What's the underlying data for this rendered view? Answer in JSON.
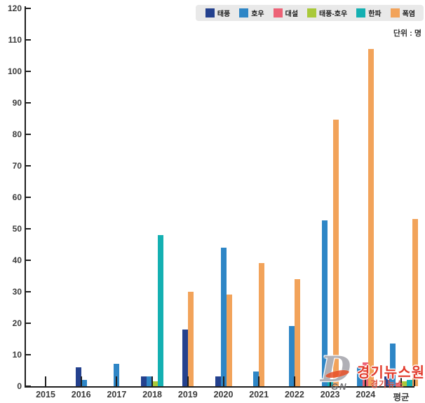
{
  "unit_label": "단위 : 명",
  "legend": {
    "items": [
      {
        "label": "태풍",
        "color": "#24418e"
      },
      {
        "label": "호우",
        "color": "#2e86c6"
      },
      {
        "label": "대설",
        "color": "#ed6276"
      },
      {
        "label": "태풍-호우",
        "color": "#a9c93a"
      },
      {
        "label": "한파",
        "color": "#14b0b2"
      },
      {
        "label": "폭염",
        "color": "#f2a35a"
      }
    ]
  },
  "chart_data": {
    "type": "bar",
    "title": "",
    "xlabel": "",
    "ylabel": "",
    "unit": "명",
    "ylim": [
      0,
      120
    ],
    "ytick_step": 10,
    "grid": false,
    "legend_position": "top-right",
    "categories": [
      "2015",
      "2016",
      "2017",
      "2018",
      "2019",
      "2020",
      "2021",
      "2022",
      "2023",
      "2024",
      "평균"
    ],
    "series": [
      {
        "name": "태풍",
        "color": "#24418e",
        "values": [
          0,
          6,
          0,
          3,
          18,
          3,
          0,
          0,
          0,
          0,
          3
        ]
      },
      {
        "name": "호우",
        "color": "#2e86c6",
        "values": [
          0,
          2,
          7,
          3,
          0,
          44,
          4.5,
          19,
          52.5,
          6,
          13.5
        ]
      },
      {
        "name": "대설",
        "color": "#ed6276",
        "values": [
          0,
          0,
          0,
          0,
          0,
          0,
          0,
          0,
          0,
          7.5,
          1
        ]
      },
      {
        "name": "태풍-호우",
        "color": "#a9c93a",
        "values": [
          0,
          0,
          0,
          1.5,
          0,
          0,
          0,
          0,
          0,
          0,
          1.5
        ]
      },
      {
        "name": "한파",
        "color": "#14b0b2",
        "values": [
          0,
          0,
          0,
          48,
          0,
          0,
          0,
          0,
          1.5,
          0,
          2
        ]
      },
      {
        "name": "폭염",
        "color": "#f2a35a",
        "values": [
          0,
          0,
          0,
          0,
          30,
          29,
          39,
          34,
          84.5,
          107,
          53
        ]
      }
    ]
  },
  "watermark": {
    "glyph": "D",
    "title": "경기뉴스원",
    "subtitle": "경기뉴스",
    "initials": "GN"
  }
}
